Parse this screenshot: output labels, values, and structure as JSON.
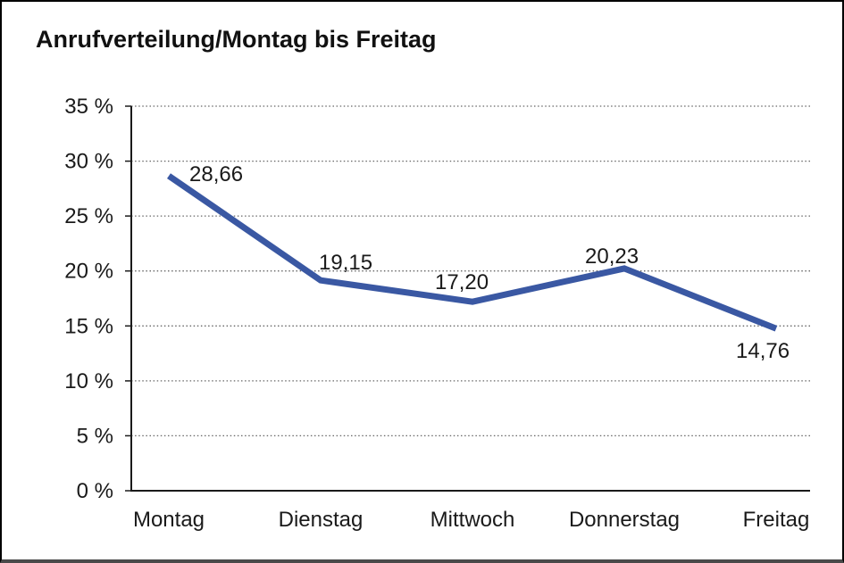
{
  "chart_data": {
    "type": "line",
    "title": "Anrufverteilung/Montag bis Freitag",
    "categories": [
      "Montag",
      "Dienstag",
      "Mittwoch",
      "Donnerstag",
      "Freitag"
    ],
    "series": [
      {
        "name": "Anrufverteilung",
        "values": [
          28.66,
          19.15,
          17.2,
          20.23,
          14.76
        ]
      }
    ],
    "data_labels": [
      "28,66",
      "19,15",
      "17,20",
      "20,23",
      "14,76"
    ],
    "y_tick_labels": [
      "0 %",
      "5 %",
      "10 %",
      "15 %",
      "20 %",
      "25 %",
      "30 %",
      "35 %"
    ],
    "xlabel": "",
    "ylabel": "",
    "ylim": [
      0,
      35
    ],
    "y_step": 5,
    "grid": "horizontal-dotted",
    "legend": "none",
    "colors": {
      "line": "#3a58a3",
      "text": "#1a1a1a",
      "axis": "#1a1a1a",
      "grid": "#666666",
      "background": "#ffffff"
    }
  }
}
